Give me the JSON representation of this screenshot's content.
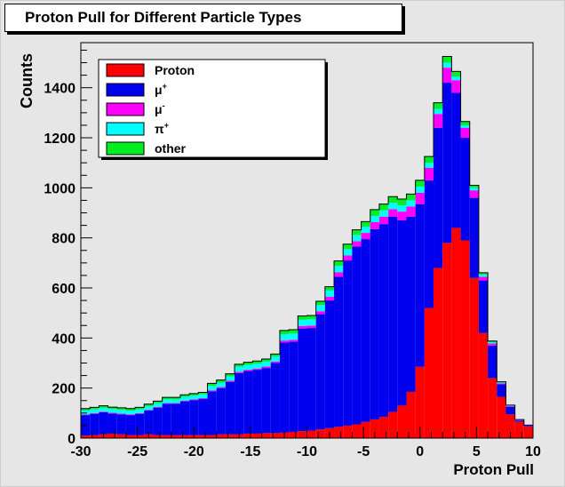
{
  "chart_data": {
    "type": "bar",
    "stacked": true,
    "title": "Proton Pull for Different Particle Types",
    "xlabel": "Proton Pull",
    "ylabel": "Counts",
    "xlim": [
      -30,
      10
    ],
    "ylim": [
      0,
      1580
    ],
    "x_ticks": [
      -30,
      -25,
      -20,
      -15,
      -10,
      -5,
      0,
      5,
      10
    ],
    "y_ticks": [
      0,
      200,
      400,
      600,
      800,
      1000,
      1200,
      1400
    ],
    "bin_width": 0.8,
    "bin_edges_start": -30,
    "legend_position": "top-left",
    "colors": {
      "Proton": "#ff0000",
      "mu_plus": "#0000ee",
      "mu_minus": "#ff00ff",
      "pi_plus": "#00ffff",
      "other": "#00ee22",
      "frame_bg": "#e6e6e6"
    },
    "series": [
      {
        "name": "Proton",
        "key": "Proton",
        "values": [
          10,
          12,
          15,
          18,
          15,
          12,
          12,
          15,
          12,
          12,
          12,
          12,
          12,
          12,
          12,
          15,
          15,
          15,
          18,
          18,
          20,
          20,
          22,
          25,
          28,
          30,
          35,
          40,
          45,
          50,
          55,
          65,
          75,
          85,
          105,
          130,
          185,
          285,
          520,
          680,
          780,
          840,
          790,
          640,
          420,
          240,
          165,
          95,
          65,
          45,
          30
        ]
      },
      {
        "name": "μ",
        "sup": "+",
        "key": "mu_plus",
        "values": [
          82,
          85,
          88,
          80,
          80,
          80,
          85,
          95,
          110,
          125,
          125,
          135,
          140,
          145,
          175,
          185,
          210,
          245,
          250,
          255,
          260,
          280,
          360,
          360,
          410,
          410,
          460,
          510,
          600,
          660,
          710,
          730,
          760,
          770,
          780,
          740,
          700,
          650,
          510,
          560,
          640,
          540,
          410,
          320,
          210,
          130,
          50,
          30,
          5,
          3,
          2
        ]
      },
      {
        "name": "μ",
        "sup": "-",
        "key": "mu_minus",
        "values": [
          3,
          3,
          3,
          3,
          3,
          3,
          3,
          3,
          3,
          3,
          3,
          3,
          3,
          3,
          4,
          4,
          4,
          5,
          5,
          5,
          6,
          6,
          8,
          8,
          10,
          10,
          12,
          15,
          18,
          20,
          22,
          25,
          28,
          30,
          30,
          35,
          40,
          45,
          50,
          55,
          60,
          50,
          40,
          30,
          15,
          8,
          4,
          3,
          2,
          2,
          1
        ]
      },
      {
        "name": "π",
        "sup": "+",
        "key": "pi_plus",
        "values": [
          15,
          15,
          15,
          15,
          15,
          15,
          15,
          15,
          15,
          15,
          15,
          15,
          15,
          15,
          18,
          18,
          18,
          20,
          20,
          20,
          20,
          20,
          25,
          25,
          25,
          25,
          25,
          25,
          25,
          25,
          25,
          25,
          25,
          25,
          25,
          25,
          25,
          25,
          20,
          20,
          20,
          15,
          10,
          10,
          8,
          5,
          3,
          2,
          1,
          1,
          1
        ]
      },
      {
        "name": "other",
        "key": "other",
        "values": [
          8,
          8,
          8,
          8,
          8,
          8,
          8,
          8,
          8,
          8,
          8,
          8,
          8,
          8,
          10,
          10,
          10,
          10,
          10,
          10,
          10,
          10,
          15,
          15,
          15,
          15,
          15,
          15,
          20,
          20,
          20,
          20,
          25,
          25,
          25,
          25,
          25,
          25,
          25,
          25,
          25,
          20,
          15,
          10,
          8,
          5,
          3,
          2,
          1,
          1,
          1
        ]
      }
    ]
  }
}
